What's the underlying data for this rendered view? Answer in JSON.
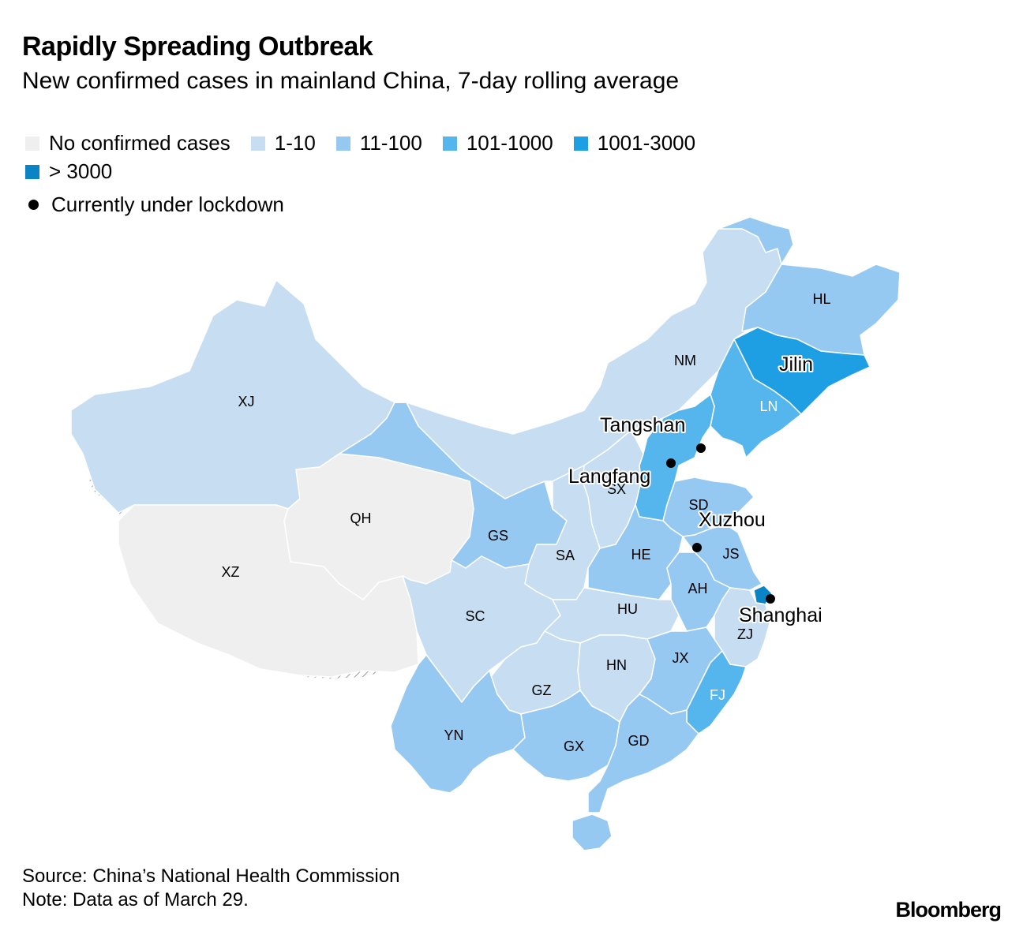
{
  "title": "Rapidly Spreading Outbreak",
  "subtitle": "New confirmed cases in mainland China, 7-day rolling average",
  "legend": {
    "bins": [
      {
        "label": "No confirmed cases",
        "color": "#efefef"
      },
      {
        "label": "1-10",
        "color": "#c6ddf2"
      },
      {
        "label": "11-100",
        "color": "#96c9f1"
      },
      {
        "label": "101-1000",
        "color": "#55b6ee"
      },
      {
        "label": "1001-3000",
        "color": "#1f9fe3"
      },
      {
        "label": "> 3000",
        "color": "#0b84c6"
      }
    ],
    "lockdown_label": "Currently under lockdown"
  },
  "provinces": {
    "XJ": {
      "label": "XJ",
      "bin": "1-10"
    },
    "XZ": {
      "label": "XZ",
      "bin": "No confirmed cases"
    },
    "QH": {
      "label": "QH",
      "bin": "No confirmed cases"
    },
    "GS": {
      "label": "GS",
      "bin": "11-100"
    },
    "NM": {
      "label": "NM",
      "bin": "1-10"
    },
    "HL": {
      "label": "HL",
      "bin": "11-100"
    },
    "JL": {
      "label": "Jilin",
      "bin": "1001-3000"
    },
    "LN": {
      "label": "LN",
      "bin": "101-1000"
    },
    "HB": {
      "label": "",
      "bin": "101-1000"
    },
    "SX": {
      "label": "SX",
      "bin": "1-10"
    },
    "SD": {
      "label": "SD",
      "bin": "11-100"
    },
    "SA": {
      "label": "SA",
      "bin": "1-10"
    },
    "HE": {
      "label": "HE",
      "bin": "11-100"
    },
    "JS": {
      "label": "JS",
      "bin": "11-100"
    },
    "AH": {
      "label": "AH",
      "bin": "11-100"
    },
    "SH": {
      "label": "",
      "bin": "> 3000"
    },
    "ZJ": {
      "label": "ZJ",
      "bin": "1-10"
    },
    "SC": {
      "label": "SC",
      "bin": "1-10"
    },
    "HU": {
      "label": "HU",
      "bin": "1-10"
    },
    "HN": {
      "label": "HN",
      "bin": "1-10"
    },
    "JX": {
      "label": "JX",
      "bin": "11-100"
    },
    "FJ": {
      "label": "FJ",
      "bin": "101-1000"
    },
    "GZ": {
      "label": "GZ",
      "bin": "1-10"
    },
    "YN": {
      "label": "YN",
      "bin": "11-100"
    },
    "GX": {
      "label": "GX",
      "bin": "11-100"
    },
    "GD": {
      "label": "GD",
      "bin": "11-100"
    },
    "HI": {
      "label": "",
      "bin": "11-100"
    }
  },
  "lockdown_cities": [
    "Tangshan",
    "Langfang",
    "Xuzhou",
    "Shanghai"
  ],
  "source": "Source: China’s National Health Commission",
  "note": "Note: Data as of March 29.",
  "brand": "Bloomberg"
}
